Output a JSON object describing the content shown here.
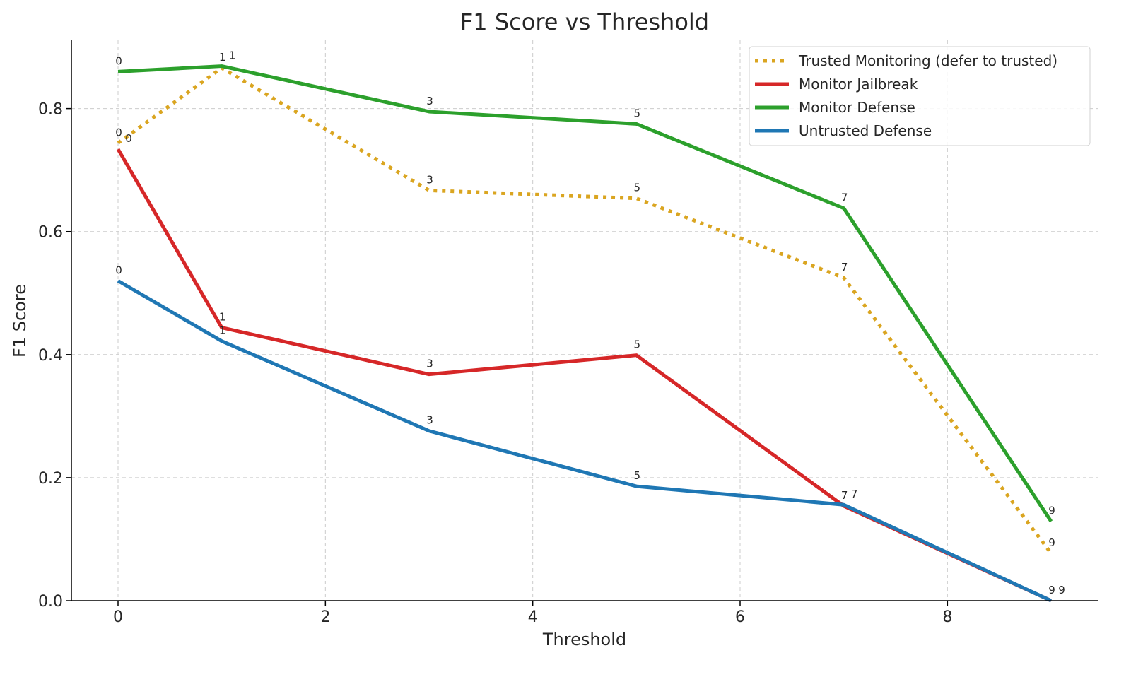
{
  "chart_data": {
    "type": "line",
    "title": "F1 Score vs Threshold",
    "xlabel": "Threshold",
    "ylabel": "F1 Score",
    "xlim": [
      -0.45,
      9.45
    ],
    "ylim": [
      0,
      0.911
    ],
    "xticks": [
      0,
      2,
      4,
      6,
      8
    ],
    "xtick_labels": [
      "0",
      "2",
      "4",
      "6",
      "8"
    ],
    "yticks": [
      0,
      0.2,
      0.4,
      0.6,
      0.8
    ],
    "ytick_labels": [
      "0.0",
      "0.2",
      "0.4",
      "0.6",
      "0.8"
    ],
    "grid": true,
    "legend_position": "top-right",
    "x": [
      0,
      1,
      3,
      5,
      7,
      9
    ],
    "point_labels": [
      "0",
      "1",
      "3",
      "5",
      "7",
      "9"
    ],
    "series": [
      {
        "name": "Trusted Monitoring (defer to trusted)",
        "color": "#DAA520",
        "style": "dotted",
        "values": [
          0.744,
          0.866,
          0.667,
          0.654,
          0.525,
          0.077
        ]
      },
      {
        "name": "Monitor Jailbreak",
        "color": "#D62728",
        "style": "solid",
        "values": [
          0.734,
          0.444,
          0.368,
          0.399,
          0.154,
          0.0
        ]
      },
      {
        "name": "Monitor Defense",
        "color": "#2CA02C",
        "style": "solid",
        "values": [
          0.86,
          0.869,
          0.795,
          0.775,
          0.638,
          0.129
        ]
      },
      {
        "name": "Untrusted Defense",
        "color": "#1F77B4",
        "style": "solid",
        "values": [
          0.52,
          0.422,
          0.276,
          0.186,
          0.156,
          0.0
        ]
      }
    ]
  }
}
